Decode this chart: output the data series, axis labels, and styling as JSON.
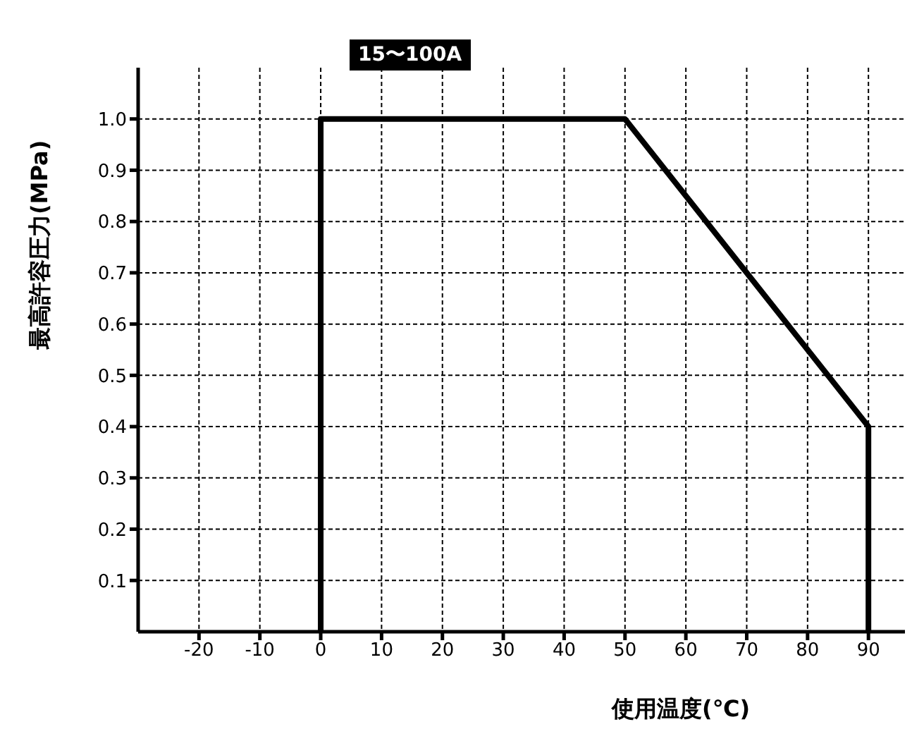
{
  "chart_data": {
    "type": "line",
    "xlabel": "使用温度(℃)",
    "ylabel": "最高許容圧力(MPa)",
    "annotations": [
      "15〜100A"
    ],
    "series": [
      {
        "color": "#000000",
        "x": [
          0,
          0,
          50,
          90,
          90
        ],
        "values": [
          0,
          1.0,
          1.0,
          0.4,
          0
        ]
      }
    ],
    "xlim": [
      -30,
      96
    ],
    "xticks": [
      -20,
      -10,
      0,
      10,
      20,
      30,
      40,
      50,
      60,
      70,
      80,
      90
    ],
    "ylim": [
      0,
      1.1
    ],
    "yticks": [
      {
        "value": 0.1,
        "label": "0.1"
      },
      {
        "value": 0.2,
        "label": "0.2"
      },
      {
        "value": 0.3,
        "label": "0.3"
      },
      {
        "value": 0.4,
        "label": "0.4"
      },
      {
        "value": 0.5,
        "label": "0.5"
      },
      {
        "value": 0.6,
        "label": "0.6"
      },
      {
        "value": 0.7,
        "label": "0.7"
      },
      {
        "value": 0.8,
        "label": "0.8"
      },
      {
        "value": 0.9,
        "label": "0.9"
      },
      {
        "value": 1.0,
        "label": "1.0"
      }
    ],
    "grid": true,
    "marker": "none",
    "line_style": "solid",
    "legend": false
  }
}
